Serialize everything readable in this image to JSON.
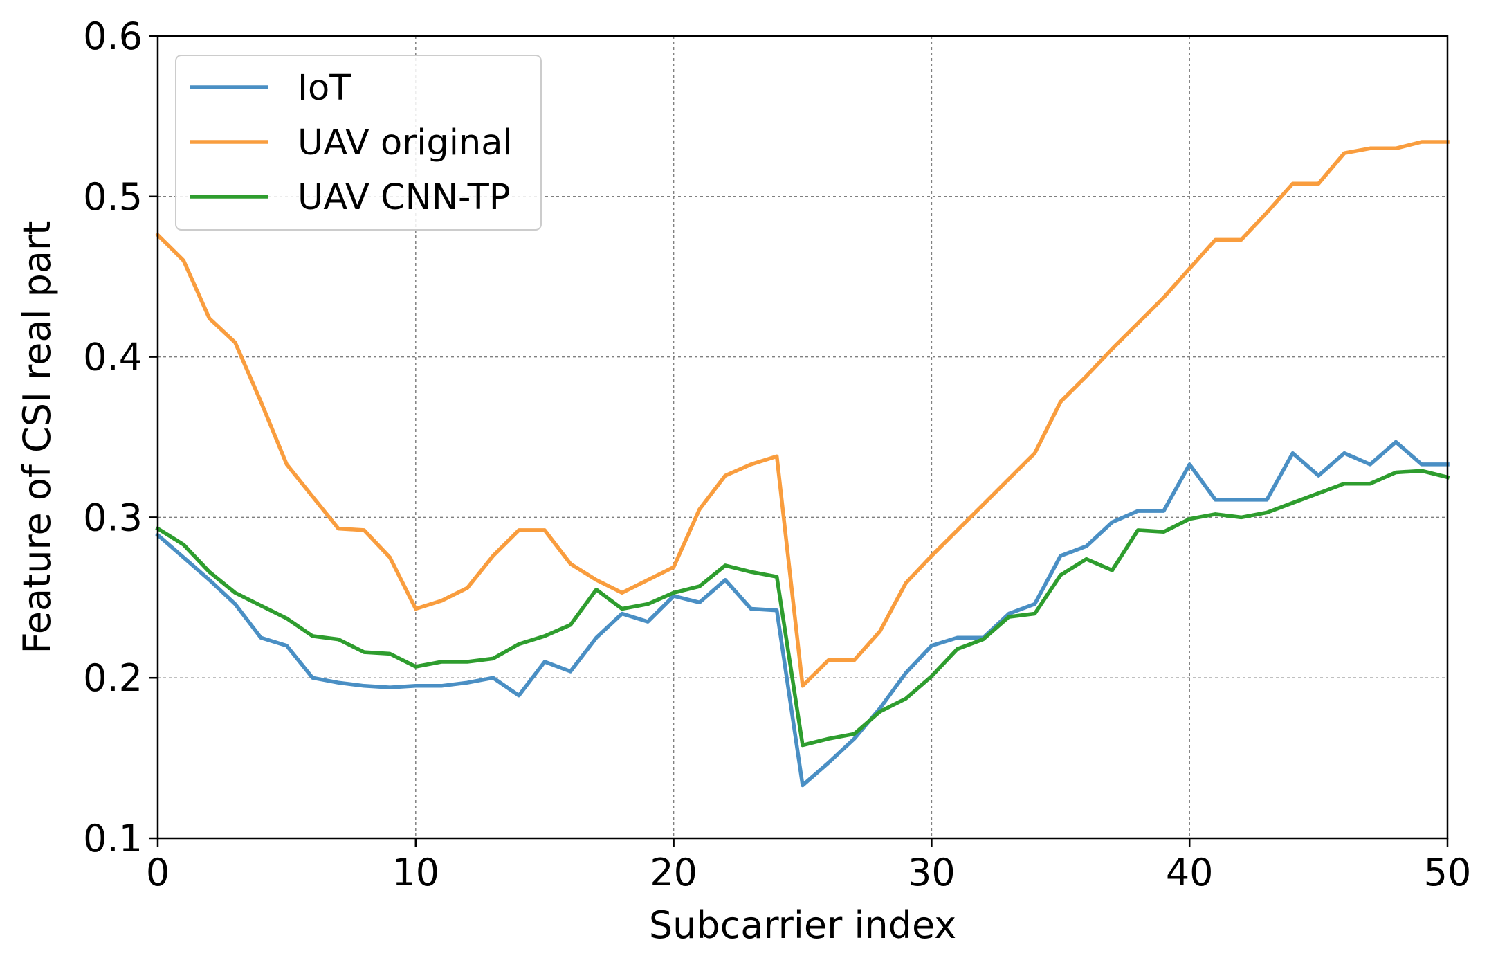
{
  "chart_data": {
    "type": "line",
    "xlabel": "Subcarrier index",
    "ylabel": "Feature of CSI real part",
    "xlim": [
      0,
      50
    ],
    "ylim": [
      0.1,
      0.6
    ],
    "xticks": [
      0,
      10,
      20,
      30,
      40,
      50
    ],
    "yticks": [
      0.1,
      0.2,
      0.3,
      0.4,
      0.5,
      0.6
    ],
    "xtick_labels": [
      "0",
      "10",
      "20",
      "30",
      "40",
      "50"
    ],
    "ytick_labels": [
      "0.1",
      "0.2",
      "0.3",
      "0.4",
      "0.5",
      "0.6"
    ],
    "grid": true,
    "legend_position": "top-left",
    "x": [
      0,
      1,
      2,
      3,
      4,
      5,
      6,
      7,
      8,
      9,
      10,
      11,
      12,
      13,
      14,
      15,
      16,
      17,
      18,
      19,
      20,
      21,
      22,
      23,
      24,
      25,
      26,
      27,
      28,
      29,
      30,
      31,
      32,
      33,
      34,
      35,
      36,
      37,
      38,
      39,
      40,
      41,
      42,
      43,
      44,
      45,
      46,
      47,
      48,
      49,
      50
    ],
    "series": [
      {
        "name": "IoT",
        "color": "#4a8fc4",
        "values": [
          0.289,
          0.275,
          0.261,
          0.246,
          0.225,
          0.22,
          0.2,
          0.197,
          0.195,
          0.194,
          0.195,
          0.195,
          0.197,
          0.2,
          0.189,
          0.21,
          0.204,
          0.225,
          0.24,
          0.235,
          0.251,
          0.247,
          0.261,
          0.243,
          0.242,
          0.133,
          0.147,
          0.162,
          0.181,
          0.203,
          0.22,
          0.225,
          0.225,
          0.24,
          0.246,
          0.276,
          0.282,
          0.297,
          0.304,
          0.304,
          0.333,
          0.311,
          0.311,
          0.311,
          0.34,
          0.326,
          0.34,
          0.333,
          0.347,
          0.333,
          0.333
        ]
      },
      {
        "name": "UAV original",
        "color": "#f99d3e",
        "values": [
          0.476,
          0.46,
          0.424,
          0.409,
          0.372,
          0.333,
          0.313,
          0.293,
          0.292,
          0.275,
          0.243,
          0.248,
          0.256,
          0.276,
          0.292,
          0.292,
          0.271,
          0.261,
          0.253,
          0.261,
          0.269,
          0.305,
          0.326,
          0.333,
          0.338,
          0.195,
          0.211,
          0.211,
          0.229,
          0.259,
          0.276,
          0.292,
          0.308,
          0.324,
          0.34,
          0.372,
          0.388,
          0.405,
          0.421,
          0.437,
          0.455,
          0.473,
          0.473,
          0.49,
          0.508,
          0.508,
          0.527,
          0.53,
          0.53,
          0.534,
          0.534
        ]
      },
      {
        "name": "UAV CNN-TP",
        "color": "#2e9d2e",
        "values": [
          0.293,
          0.283,
          0.266,
          0.253,
          0.245,
          0.237,
          0.226,
          0.224,
          0.216,
          0.215,
          0.207,
          0.21,
          0.21,
          0.212,
          0.221,
          0.226,
          0.233,
          0.255,
          0.243,
          0.246,
          0.253,
          0.257,
          0.27,
          0.266,
          0.263,
          0.158,
          0.162,
          0.165,
          0.179,
          0.187,
          0.201,
          0.218,
          0.224,
          0.238,
          0.24,
          0.264,
          0.274,
          0.267,
          0.292,
          0.291,
          0.299,
          0.302,
          0.3,
          0.303,
          0.309,
          0.315,
          0.321,
          0.321,
          0.328,
          0.329,
          0.325
        ]
      }
    ]
  }
}
